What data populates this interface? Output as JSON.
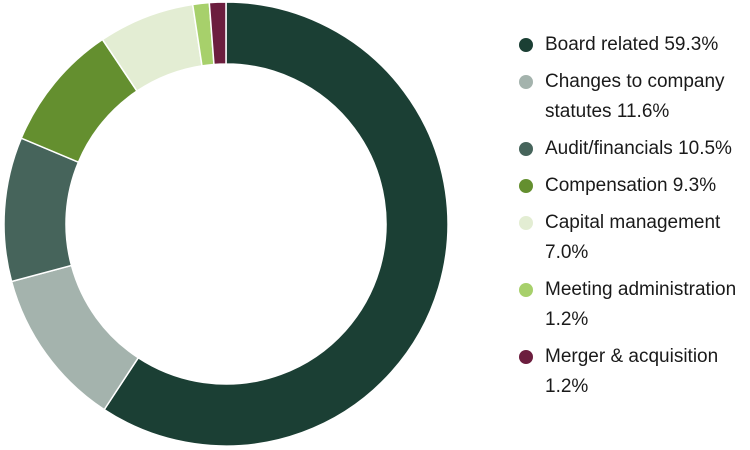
{
  "chart_data": {
    "type": "pie",
    "variant": "donut",
    "start": "top",
    "direction": "clockwise",
    "legend_position": "right",
    "series": [
      {
        "name": "Board related",
        "label": "Board related 59.3%",
        "value": 59.3,
        "color": "#1b3f34"
      },
      {
        "name": "Changes to company statutes",
        "label": "Changes to company statutes 11.6%",
        "value": 11.6,
        "color": "#a4b3ad"
      },
      {
        "name": "Audit/financials",
        "label": "Audit/financials 10.5%",
        "value": 10.5,
        "color": "#46645b"
      },
      {
        "name": "Compensation",
        "label": "Compensation 9.3%",
        "value": 9.3,
        "color": "#648f2f"
      },
      {
        "name": "Capital management",
        "label": "Capital management 7.0%",
        "value": 7.0,
        "color": "#e3edd3"
      },
      {
        "name": "Meeting administration",
        "label": "Meeting administration 1.2%",
        "value": 1.2,
        "color": "#a7d06b"
      },
      {
        "name": "Merger & acquisition",
        "label": "Merger & acquisition 1.2%",
        "value": 1.2,
        "color": "#6c1e3e"
      }
    ]
  }
}
